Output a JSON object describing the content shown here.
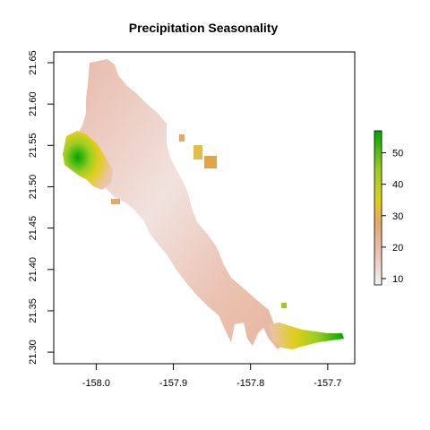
{
  "chart_data": {
    "type": "heatmap",
    "title": "Precipitation Seasonality",
    "xlabel": "",
    "ylabel": "",
    "xlim": [
      -158.055,
      -157.665
    ],
    "ylim": [
      21.286,
      21.663
    ],
    "x_ticks": [
      {
        "value": -158.0,
        "label": "-158.0"
      },
      {
        "value": -157.9,
        "label": "-157.9"
      },
      {
        "value": -157.8,
        "label": "-157.8"
      },
      {
        "value": -157.7,
        "label": "-157.7"
      }
    ],
    "y_ticks": [
      {
        "value": 21.3,
        "label": "21.30"
      },
      {
        "value": 21.35,
        "label": "21.35"
      },
      {
        "value": 21.4,
        "label": "21.40"
      },
      {
        "value": 21.45,
        "label": "21.45"
      },
      {
        "value": 21.5,
        "label": "21.50"
      },
      {
        "value": 21.55,
        "label": "21.55"
      },
      {
        "value": 21.6,
        "label": "21.60"
      },
      {
        "value": 21.65,
        "label": "21.65"
      }
    ],
    "legend": {
      "placement": "right",
      "min": 8,
      "max": 57,
      "ticks": [
        {
          "value": 10,
          "label": "10"
        },
        {
          "value": 20,
          "label": "20"
        },
        {
          "value": 30,
          "label": "30"
        },
        {
          "value": 40,
          "label": "40"
        },
        {
          "value": 50,
          "label": "50"
        }
      ],
      "colors": [
        "#f2f2f2",
        "#ebc3b3",
        "#e4a86b",
        "#dfce1a",
        "#9acd22",
        "#00a600"
      ]
    },
    "grid": false,
    "regions": [
      {
        "id": "main-island",
        "lon": [
          -157.93,
          -157.72
        ],
        "lat": [
          21.3,
          21.64
        ]
      },
      {
        "id": "west-coast-high",
        "lon": [
          -158.05,
          -157.99
        ],
        "lat": [
          21.49,
          21.56
        ],
        "value_range": [
          35,
          57
        ]
      },
      {
        "id": "southeast-tip-high",
        "lon": [
          -157.76,
          -157.68
        ],
        "lat": [
          21.3,
          21.32
        ],
        "value_range": [
          30,
          57
        ]
      }
    ]
  }
}
